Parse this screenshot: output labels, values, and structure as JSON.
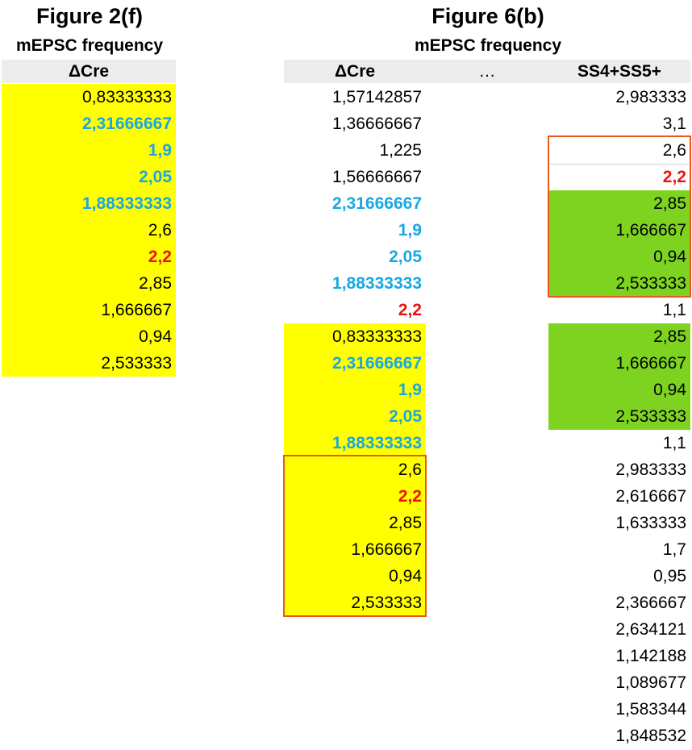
{
  "left": {
    "title": "Figure 2(f)",
    "subtitle": "mEPSC frequency",
    "header": "ΔCre",
    "rows": [
      {
        "v": "0,83333333",
        "c": "plain",
        "bg": "yellow"
      },
      {
        "v": "2,31666667",
        "c": "blue",
        "bg": "yellow"
      },
      {
        "v": "1,9",
        "c": "blue",
        "bg": "yellow"
      },
      {
        "v": "2,05",
        "c": "blue",
        "bg": "yellow"
      },
      {
        "v": "1,88333333",
        "c": "blue",
        "bg": "yellow"
      },
      {
        "v": "2,6",
        "c": "plain",
        "bg": "yellow"
      },
      {
        "v": "2,2",
        "c": "red",
        "bg": "yellow"
      },
      {
        "v": "2,85",
        "c": "plain",
        "bg": "yellow"
      },
      {
        "v": "1,666667",
        "c": "plain",
        "bg": "yellow"
      },
      {
        "v": "0,94",
        "c": "plain",
        "bg": "yellow"
      },
      {
        "v": "2,533333",
        "c": "plain",
        "bg": "yellow"
      }
    ]
  },
  "right": {
    "title": "Figure 6(b)",
    "subtitle": "mEPSC frequency",
    "headers": {
      "cre": "ΔCre",
      "dots": "…",
      "ss": "SS4+SS5+"
    },
    "cre_rows": [
      {
        "v": "1,57142857",
        "c": "plain",
        "bg": "none"
      },
      {
        "v": "1,36666667",
        "c": "plain",
        "bg": "none"
      },
      {
        "v": "1,225",
        "c": "plain",
        "bg": "none"
      },
      {
        "v": "1,56666667",
        "c": "plain",
        "bg": "none"
      },
      {
        "v": "2,31666667",
        "c": "blue",
        "bg": "none"
      },
      {
        "v": "1,9",
        "c": "blue",
        "bg": "none"
      },
      {
        "v": "2,05",
        "c": "blue",
        "bg": "none"
      },
      {
        "v": "1,88333333",
        "c": "blue",
        "bg": "none"
      },
      {
        "v": "2,2",
        "c": "red",
        "bg": "none"
      },
      {
        "v": "0,83333333",
        "c": "plain",
        "bg": "yellow"
      },
      {
        "v": "2,31666667",
        "c": "blue",
        "bg": "yellow"
      },
      {
        "v": "1,9",
        "c": "blue",
        "bg": "yellow"
      },
      {
        "v": "2,05",
        "c": "blue",
        "bg": "yellow"
      },
      {
        "v": "1,88333333",
        "c": "blue",
        "bg": "yellow"
      },
      {
        "v": "2,6",
        "c": "plain",
        "bg": "yellow"
      },
      {
        "v": "2,2",
        "c": "red",
        "bg": "yellow"
      },
      {
        "v": "2,85",
        "c": "plain",
        "bg": "yellow"
      },
      {
        "v": "1,666667",
        "c": "plain",
        "bg": "yellow"
      },
      {
        "v": "0,94",
        "c": "plain",
        "bg": "yellow"
      },
      {
        "v": "2,533333",
        "c": "plain",
        "bg": "yellow"
      }
    ],
    "ss_rows": [
      {
        "v": "2,983333",
        "c": "plain",
        "bg": "none"
      },
      {
        "v": "3,1",
        "c": "plain",
        "bg": "none"
      },
      {
        "v": "2,6",
        "c": "plain",
        "bg": "none"
      },
      {
        "v": "2,2",
        "c": "red",
        "bg": "none"
      },
      {
        "v": "2,85",
        "c": "plain",
        "bg": "green"
      },
      {
        "v": "1,666667",
        "c": "plain",
        "bg": "green"
      },
      {
        "v": "0,94",
        "c": "plain",
        "bg": "green"
      },
      {
        "v": "2,533333",
        "c": "plain",
        "bg": "green"
      },
      {
        "v": "1,1",
        "c": "plain",
        "bg": "none"
      },
      {
        "v": "2,85",
        "c": "plain",
        "bg": "green"
      },
      {
        "v": "1,666667",
        "c": "plain",
        "bg": "green"
      },
      {
        "v": "0,94",
        "c": "plain",
        "bg": "green"
      },
      {
        "v": "2,533333",
        "c": "plain",
        "bg": "green"
      },
      {
        "v": "1,1",
        "c": "plain",
        "bg": "none"
      },
      {
        "v": "2,983333",
        "c": "plain",
        "bg": "none"
      },
      {
        "v": "2,616667",
        "c": "plain",
        "bg": "none"
      },
      {
        "v": "1,633333",
        "c": "plain",
        "bg": "none"
      },
      {
        "v": "1,7",
        "c": "plain",
        "bg": "none"
      },
      {
        "v": "0,95",
        "c": "plain",
        "bg": "none"
      },
      {
        "v": "2,366667",
        "c": "plain",
        "bg": "none"
      },
      {
        "v": "2,634121",
        "c": "plain",
        "bg": "none"
      },
      {
        "v": "1,142188",
        "c": "plain",
        "bg": "none"
      },
      {
        "v": "1,089677",
        "c": "plain",
        "bg": "none"
      },
      {
        "v": "1,583344",
        "c": "plain",
        "bg": "none"
      },
      {
        "v": "1,848532",
        "c": "plain",
        "bg": "none"
      }
    ]
  },
  "colors": {
    "highlight_yellow": "#ffff00",
    "highlight_green": "#7ed321",
    "text_blue": "#1aa7e0",
    "text_red": "#ee1111",
    "box_orange": "#e9581f"
  }
}
